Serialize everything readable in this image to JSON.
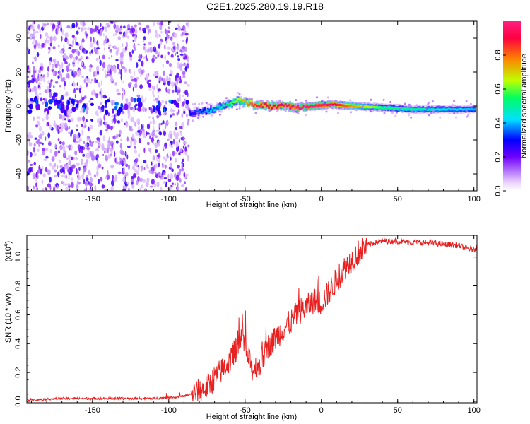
{
  "title": "C2E1.2025.280.19.19.R18",
  "chart_data": [
    {
      "type": "heatmap",
      "name": "spectrogram",
      "xlabel": "Height of straight line (km)",
      "ylabel": "Frequency (Hz)",
      "xlim": [
        -193,
        102
      ],
      "ylim": [
        -50,
        50
      ],
      "xticks": [
        -150,
        -100,
        -50,
        0,
        50,
        100
      ],
      "yticks": [
        -40,
        -20,
        0,
        20,
        40
      ],
      "noise_region_x": [
        -193,
        -87
      ],
      "ridge": {
        "x": [
          -87,
          -75,
          -65,
          -55,
          -45,
          -35,
          -25,
          -15,
          -5,
          5,
          20,
          40,
          60,
          80,
          100
        ],
        "freq_hz": [
          -4,
          -3,
          0,
          3,
          1,
          0,
          0,
          -1,
          0,
          1,
          0,
          -1,
          -2,
          -2,
          -2
        ],
        "amplitude": [
          0.3,
          0.4,
          0.5,
          0.65,
          0.85,
          0.9,
          0.95,
          0.95,
          1.0,
          0.95,
          0.75,
          0.55,
          0.5,
          0.45,
          0.4
        ]
      },
      "colorbar": {
        "label": "Normalized spectral amplitude",
        "range": [
          0,
          1
        ],
        "ticks": [
          "0.0",
          "0.2",
          "0.4",
          "0.6",
          "0.8"
        ],
        "colors": [
          "#ffffff",
          "#ead0ff",
          "#b070ff",
          "#7000ff",
          "#0000ff",
          "#00e0ff",
          "#00ff60",
          "#c0ff00",
          "#ff8000",
          "#ff0040",
          "#ff2080"
        ]
      }
    },
    {
      "type": "line",
      "name": "snr",
      "xlabel": "Height of straight line (km)",
      "ylabel": "SNR (10 * v/v)",
      "scale_label": "(x10",
      "scale_exp": "4",
      "xlim": [
        -193,
        102
      ],
      "ylim": [
        -0.01,
        1.15
      ],
      "xticks": [
        -150,
        -100,
        -50,
        0,
        50,
        100
      ],
      "yticks": [
        "0.0",
        "0.2",
        "0.4",
        "0.6",
        "0.8",
        "1.0"
      ],
      "line_color": "#e82020",
      "x": [
        -193,
        -170,
        -150,
        -130,
        -110,
        -95,
        -88,
        -80,
        -75,
        -70,
        -65,
        -60,
        -55,
        -52,
        -48,
        -45,
        -40,
        -35,
        -30,
        -25,
        -20,
        -15,
        -10,
        -5,
        0,
        5,
        10,
        15,
        20,
        25,
        30,
        35,
        40,
        50,
        60,
        70,
        80,
        90,
        95,
        100,
        102
      ],
      "values": [
        0.01,
        0.02,
        0.02,
        0.02,
        0.02,
        0.03,
        0.04,
        0.07,
        0.1,
        0.16,
        0.22,
        0.28,
        0.38,
        0.5,
        0.3,
        0.22,
        0.26,
        0.38,
        0.44,
        0.5,
        0.55,
        0.62,
        0.65,
        0.7,
        0.68,
        0.76,
        0.84,
        0.92,
        0.98,
        1.04,
        1.08,
        1.1,
        1.11,
        1.11,
        1.1,
        1.1,
        1.09,
        1.08,
        1.06,
        1.05,
        1.07
      ]
    }
  ]
}
